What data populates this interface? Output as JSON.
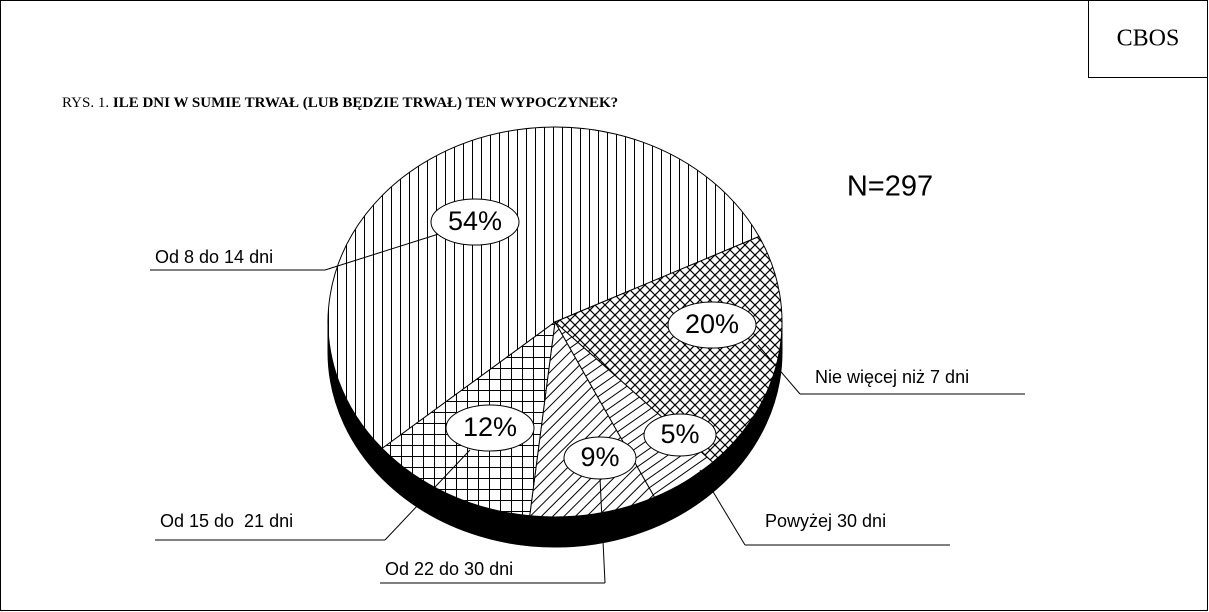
{
  "chart_data": {
    "type": "pie",
    "source": "CBOS",
    "figure_label": "RYS. 1.",
    "title": "ILE DNI W SUMIE TRWAŁ (LUB BĘDZIE TRWAŁ) TEN WYPOCZYNEK?",
    "annotation": "N=297",
    "categories": [
      "Od 8 do 14 dni",
      "Nie więcej niż 7 dni",
      "Powyżej 30 dni",
      "Od 22 do 30 dni",
      "Od 15 do  21 dni"
    ],
    "values": [
      54,
      20,
      5,
      9,
      12
    ],
    "value_labels": [
      "54%",
      "20%",
      "5%",
      "9%",
      "12%"
    ],
    "color": "#000000"
  }
}
